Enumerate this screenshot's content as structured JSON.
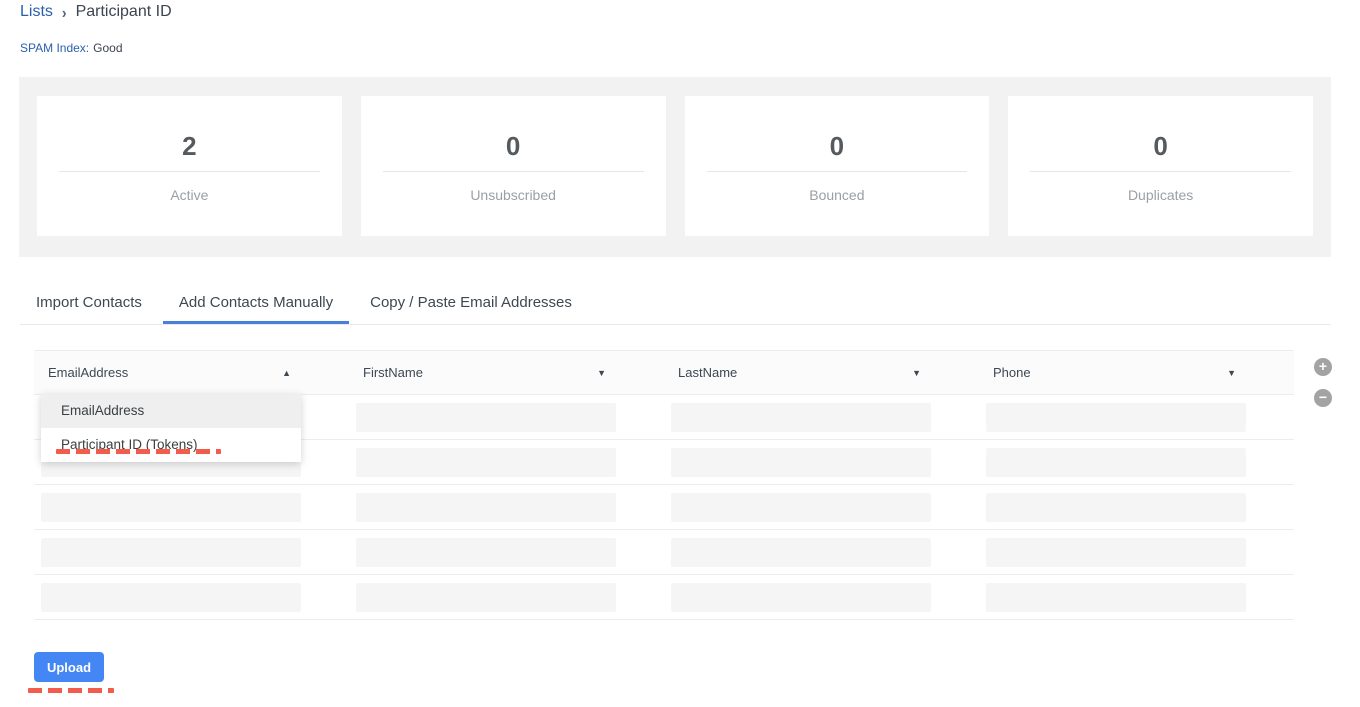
{
  "breadcrumb": {
    "parent": "Lists",
    "separator": "›",
    "current": "Participant ID"
  },
  "spam_index": {
    "label": "SPAM Index:",
    "value": "Good"
  },
  "stats_cards": [
    {
      "value": "2",
      "label": "Active"
    },
    {
      "value": "0",
      "label": "Unsubscribed"
    },
    {
      "value": "0",
      "label": "Bounced"
    },
    {
      "value": "0",
      "label": "Duplicates"
    }
  ],
  "tabs": [
    {
      "label": "Import Contacts",
      "active": false
    },
    {
      "label": "Add Contacts Manually",
      "active": true
    },
    {
      "label": "Copy / Paste Email Addresses",
      "active": false
    }
  ],
  "contact_table": {
    "columns": [
      {
        "label": "EmailAddress",
        "arrow": "▲",
        "state": "open"
      },
      {
        "label": "FirstName",
        "arrow": "▼",
        "state": "closed"
      },
      {
        "label": "LastName",
        "arrow": "▼",
        "state": "closed"
      },
      {
        "label": "Phone",
        "arrow": "▼",
        "state": "closed"
      }
    ],
    "row_count": 5,
    "cell_values": ""
  },
  "field_dropdown": {
    "attached_to": "EmailAddress",
    "options": [
      {
        "label": "EmailAddress",
        "highlighted": true
      },
      {
        "label": "Participant ID (Tokens)",
        "highlighted": false,
        "annotated": true
      }
    ]
  },
  "row_controls": {
    "add": "+",
    "remove": "−"
  },
  "upload_button": {
    "label": "Upload"
  },
  "colors": {
    "accent_blue": "#4486f4",
    "link_blue": "#2b5fae",
    "annotation_red": "#f25c4c",
    "panel_gray": "#f2f2f2"
  }
}
